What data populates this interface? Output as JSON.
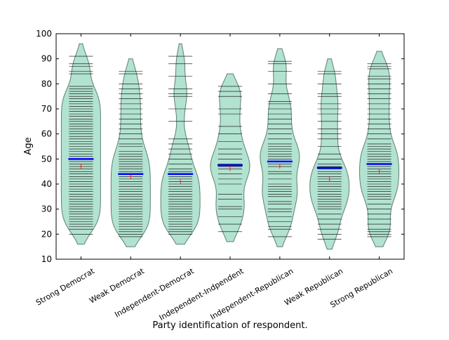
{
  "chart_data": {
    "type": "beanplot",
    "xlabel": "Party identification of respondent.",
    "ylabel": "Age",
    "categories": [
      "Strong Democrat",
      "Weak Democrat",
      "Independent-Democrat",
      "Independent-Indpendent",
      "Independent-Republican",
      "Weak Republican",
      "Strong Republican"
    ],
    "groups": [
      {
        "values": [
          20,
          22,
          23,
          24,
          25,
          26,
          27,
          28,
          29,
          30,
          31,
          32,
          33,
          34,
          35,
          36,
          37,
          38,
          39,
          40,
          41,
          42,
          43,
          44,
          45,
          46,
          47,
          48,
          49,
          50,
          51,
          52,
          53,
          54,
          55,
          56,
          57,
          58,
          59,
          60,
          61,
          62,
          63,
          64,
          65,
          66,
          67,
          68,
          69,
          70,
          71,
          72,
          73,
          74,
          75,
          76,
          77,
          78,
          79,
          84,
          85,
          87,
          88,
          91
        ],
        "median": 50,
        "mean": 47
      },
      {
        "values": [
          19,
          20,
          21,
          22,
          23,
          24,
          25,
          26,
          27,
          28,
          29,
          30,
          31,
          32,
          33,
          34,
          35,
          36,
          37,
          38,
          39,
          40,
          41,
          42,
          43,
          44,
          45,
          46,
          47,
          48,
          49,
          50,
          51,
          52,
          53,
          55,
          56,
          58,
          60,
          62,
          64,
          66,
          68,
          70,
          72,
          74,
          76,
          78,
          80,
          84,
          85
        ],
        "median": 44,
        "mean": 43
      },
      {
        "values": [
          20,
          21,
          22,
          23,
          24,
          25,
          26,
          27,
          28,
          29,
          30,
          31,
          32,
          33,
          34,
          35,
          36,
          37,
          38,
          39,
          40,
          41,
          42,
          43,
          44,
          45,
          46,
          48,
          50,
          52,
          54,
          56,
          58,
          65,
          70,
          75,
          76,
          78,
          83,
          88,
          91
        ],
        "median": 44,
        "mean": 41
      },
      {
        "values": [
          21,
          24,
          27,
          30,
          31,
          34,
          36,
          40,
          42,
          44,
          46,
          47,
          48,
          50,
          52,
          54,
          57,
          60,
          63,
          68,
          70,
          75,
          77,
          79
        ],
        "median": 47.5,
        "mean": 46
      },
      {
        "values": [
          19,
          22,
          23,
          25,
          27,
          29,
          30,
          32,
          33,
          35,
          36,
          37,
          38,
          39,
          40,
          42,
          44,
          45,
          47,
          48,
          49,
          50,
          51,
          52,
          53,
          54,
          55,
          56,
          58,
          60,
          62,
          64,
          66,
          68,
          70,
          72,
          73,
          76,
          80,
          85,
          88,
          89
        ],
        "median": 49,
        "mean": 47
      },
      {
        "values": [
          18,
          20,
          22,
          24,
          26,
          28,
          30,
          31,
          32,
          33,
          34,
          35,
          36,
          37,
          38,
          39,
          40,
          41,
          42,
          43,
          44,
          45,
          46,
          47,
          48,
          50,
          52,
          55,
          58,
          60,
          62,
          65,
          68,
          70,
          72,
          75,
          76,
          80,
          84,
          85
        ],
        "median": 46.5,
        "mean": 42
      },
      {
        "values": [
          19,
          20,
          21,
          22,
          24,
          26,
          28,
          30,
          32,
          34,
          35,
          36,
          37,
          38,
          39,
          40,
          41,
          42,
          43,
          44,
          45,
          46,
          47,
          48,
          49,
          50,
          51,
          52,
          53,
          54,
          55,
          56,
          58,
          60,
          62,
          64,
          66,
          68,
          70,
          72,
          74,
          76,
          78,
          80,
          82,
          83,
          86,
          87,
          88
        ],
        "median": 48,
        "mean": 45
      }
    ],
    "ylim": [
      10,
      100
    ],
    "yticks": [
      10,
      20,
      30,
      40,
      50,
      60,
      70,
      80,
      90,
      100
    ],
    "violin_color": "#b2e2d0",
    "line_color": "#000000",
    "median_color": "#0000ff",
    "mean_color": "#ff0000"
  }
}
